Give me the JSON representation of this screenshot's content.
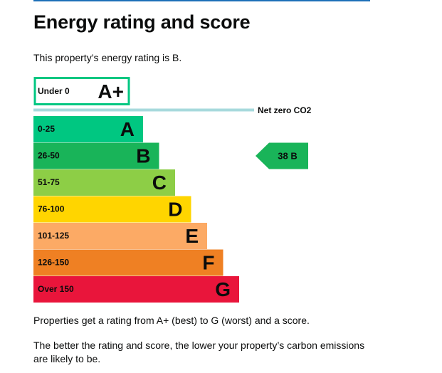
{
  "page": {
    "heading": "Energy rating and score",
    "intro": "This property’s energy rating is B.",
    "explanation_1": "Properties get a rating from A+ (best) to G (worst) and a score.",
    "explanation_2": "The better the rating and score, the lower your property’s carbon emissions are likely to be."
  },
  "chart_data": {
    "type": "bar",
    "categories": [
      "A+",
      "A",
      "B",
      "C",
      "D",
      "E",
      "F",
      "G"
    ],
    "ranges": [
      "Under 0",
      "0-25",
      "26-50",
      "51-75",
      "76-100",
      "101-125",
      "126-150",
      "Over 150"
    ],
    "colors": [
      "#00c781",
      "#00c781",
      "#19b459",
      "#8dce46",
      "#ffd500",
      "#fcaa65",
      "#ef8023",
      "#e9153b"
    ],
    "net_zero_label": "Net zero CO2",
    "current": {
      "score": 38,
      "rating": "B",
      "label": "38 B",
      "color": "#19b459"
    }
  }
}
